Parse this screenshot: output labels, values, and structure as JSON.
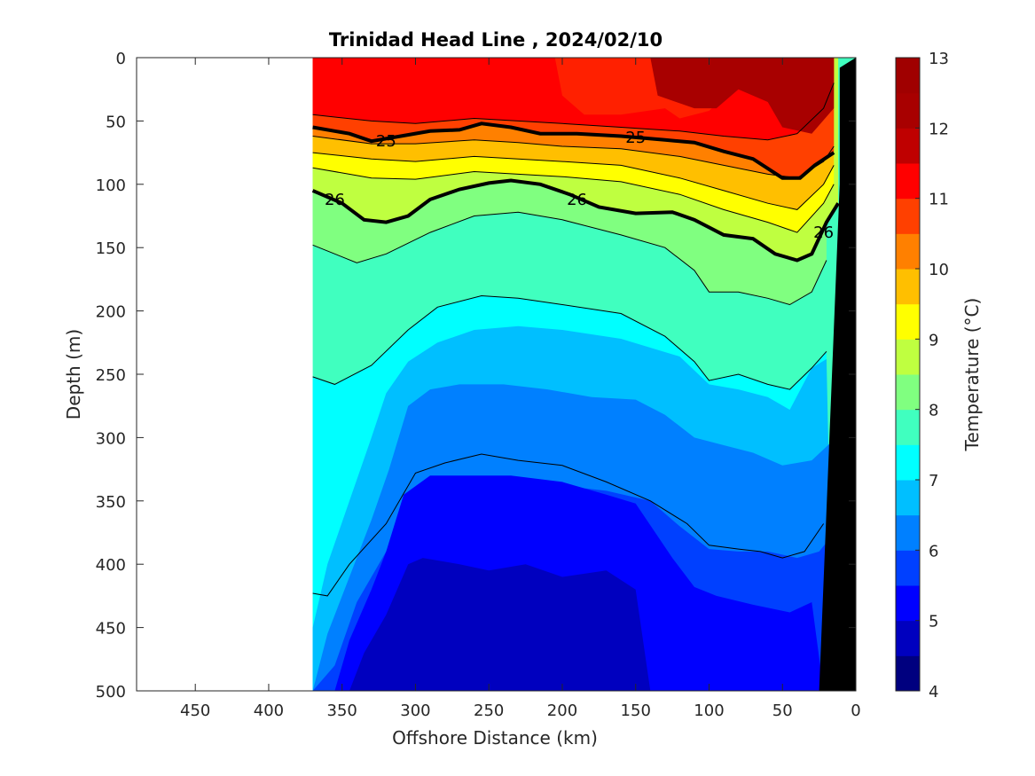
{
  "chart_data": {
    "type": "heatmap",
    "title": "Trinidad Head Line , 2024/02/10",
    "xlabel": "Offshore Distance (km)",
    "ylabel": "Depth (m)",
    "xlim": [
      490,
      0
    ],
    "ylim": [
      0,
      500
    ],
    "x_reversed": true,
    "y_reversed": true,
    "xticks": [
      450,
      400,
      350,
      300,
      250,
      200,
      150,
      100,
      50,
      0
    ],
    "yticks": [
      0,
      50,
      100,
      150,
      200,
      250,
      300,
      350,
      400,
      450,
      500
    ],
    "colorbar": {
      "label": "Temperature (°C)",
      "min": 4,
      "max": 13,
      "ticks": [
        4,
        5,
        6,
        7,
        8,
        9,
        10,
        11,
        12,
        13
      ],
      "step": 0.5,
      "colors": [
        "#00007f",
        "#0000bf",
        "#0000ff",
        "#0040ff",
        "#0080ff",
        "#00bfff",
        "#00ffff",
        "#40ffbf",
        "#80ff80",
        "#bfff40",
        "#ffff00",
        "#ffbf00",
        "#ff8000",
        "#ff4000",
        "#ff0000",
        "#bf0000",
        "#a80000",
        "#a00000"
      ]
    },
    "data_extent_km": [
      370,
      0
    ],
    "bottom_mask": {
      "color": "#000000",
      "points": [
        [
          0,
          0
        ],
        [
          0,
          500
        ],
        [
          25,
          500
        ],
        [
          11,
          100
        ],
        [
          11,
          8
        ]
      ]
    },
    "temperature_bands": [
      {
        "t": 7.5,
        "color": "#00bfff",
        "pts": [
          [
            370,
            450
          ],
          [
            360,
            400
          ],
          [
            345,
            350
          ],
          [
            330,
            300
          ],
          [
            320,
            265
          ],
          [
            305,
            240
          ],
          [
            285,
            225
          ],
          [
            260,
            215
          ],
          [
            230,
            212
          ],
          [
            200,
            215
          ],
          [
            160,
            222
          ],
          [
            120,
            236
          ],
          [
            100,
            258
          ],
          [
            80,
            262
          ],
          [
            60,
            268
          ],
          [
            45,
            278
          ],
          [
            30,
            245
          ],
          [
            20,
            238
          ],
          [
            15,
            500
          ],
          [
            370,
            500
          ]
        ]
      },
      {
        "t": 7,
        "color": "#0080ff",
        "pts": [
          [
            370,
            500
          ],
          [
            360,
            455
          ],
          [
            345,
            410
          ],
          [
            330,
            365
          ],
          [
            318,
            325
          ],
          [
            305,
            275
          ],
          [
            290,
            262
          ],
          [
            270,
            258
          ],
          [
            240,
            258
          ],
          [
            210,
            262
          ],
          [
            180,
            268
          ],
          [
            150,
            270
          ],
          [
            130,
            282
          ],
          [
            110,
            300
          ],
          [
            90,
            306
          ],
          [
            70,
            312
          ],
          [
            50,
            322
          ],
          [
            30,
            318
          ],
          [
            18,
            305
          ],
          [
            15,
            500
          ]
        ]
      },
      {
        "t": 6.5,
        "color": "#0040ff",
        "pts": [
          [
            370,
            500
          ],
          [
            355,
            480
          ],
          [
            340,
            430
          ],
          [
            320,
            390
          ],
          [
            305,
            350
          ],
          [
            290,
            335
          ],
          [
            260,
            335
          ],
          [
            230,
            332
          ],
          [
            200,
            338
          ],
          [
            170,
            342
          ],
          [
            140,
            350
          ],
          [
            120,
            370
          ],
          [
            100,
            388
          ],
          [
            80,
            390
          ],
          [
            60,
            390
          ],
          [
            40,
            395
          ],
          [
            25,
            390
          ],
          [
            18,
            380
          ],
          [
            15,
            500
          ]
        ]
      },
      {
        "t": 6,
        "color": "#0000ff",
        "pts": [
          [
            355,
            500
          ],
          [
            345,
            460
          ],
          [
            330,
            420
          ],
          [
            320,
            390
          ],
          [
            308,
            345
          ],
          [
            290,
            330
          ],
          [
            265,
            330
          ],
          [
            235,
            330
          ],
          [
            200,
            335
          ],
          [
            170,
            345
          ],
          [
            150,
            352
          ],
          [
            125,
            395
          ],
          [
            110,
            418
          ],
          [
            95,
            425
          ],
          [
            70,
            432
          ],
          [
            45,
            438
          ],
          [
            30,
            430
          ],
          [
            22,
            500
          ]
        ]
      },
      {
        "t": 5.5,
        "color": "#0000bf",
        "pts": [
          [
            345,
            500
          ],
          [
            335,
            470
          ],
          [
            320,
            440
          ],
          [
            305,
            400
          ],
          [
            295,
            395
          ],
          [
            270,
            400
          ],
          [
            250,
            405
          ],
          [
            225,
            400
          ],
          [
            200,
            410
          ],
          [
            170,
            405
          ],
          [
            150,
            420
          ],
          [
            145,
            460
          ],
          [
            140,
            500
          ]
        ]
      }
    ],
    "isotherm_lines": [
      {
        "pts": [
          [
            370,
            45
          ],
          [
            330,
            50
          ],
          [
            300,
            52
          ],
          [
            260,
            48
          ],
          [
            230,
            50
          ],
          [
            200,
            52
          ],
          [
            160,
            55
          ],
          [
            120,
            58
          ],
          [
            90,
            62
          ],
          [
            60,
            65
          ],
          [
            40,
            60
          ],
          [
            22,
            40
          ],
          [
            15,
            20
          ]
        ],
        "width": 1
      },
      {
        "pts": [
          [
            370,
            62
          ],
          [
            330,
            68
          ],
          [
            300,
            68
          ],
          [
            260,
            65
          ],
          [
            230,
            67
          ],
          [
            200,
            70
          ],
          [
            160,
            72
          ],
          [
            120,
            78
          ],
          [
            90,
            85
          ],
          [
            60,
            92
          ],
          [
            40,
            95
          ],
          [
            22,
            82
          ],
          [
            15,
            70
          ]
        ],
        "width": 1
      },
      {
        "pts": [
          [
            370,
            75
          ],
          [
            330,
            80
          ],
          [
            300,
            82
          ],
          [
            260,
            78
          ],
          [
            230,
            80
          ],
          [
            200,
            82
          ],
          [
            160,
            85
          ],
          [
            120,
            95
          ],
          [
            90,
            105
          ],
          [
            60,
            115
          ],
          [
            40,
            120
          ],
          [
            22,
            100
          ],
          [
            15,
            85
          ]
        ],
        "width": 1
      },
      {
        "pts": [
          [
            370,
            87
          ],
          [
            330,
            95
          ],
          [
            300,
            96
          ],
          [
            260,
            90
          ],
          [
            230,
            92
          ],
          [
            200,
            94
          ],
          [
            160,
            98
          ],
          [
            120,
            108
          ],
          [
            90,
            120
          ],
          [
            60,
            130
          ],
          [
            40,
            138
          ],
          [
            22,
            115
          ],
          [
            15,
            100
          ]
        ],
        "width": 1
      },
      {
        "pts": [
          [
            370,
            148
          ],
          [
            340,
            162
          ],
          [
            320,
            155
          ],
          [
            290,
            138
          ],
          [
            260,
            125
          ],
          [
            230,
            122
          ],
          [
            200,
            128
          ],
          [
            160,
            140
          ],
          [
            130,
            150
          ],
          [
            110,
            168
          ],
          [
            100,
            185
          ],
          [
            80,
            185
          ],
          [
            60,
            190
          ],
          [
            45,
            195
          ],
          [
            30,
            185
          ],
          [
            20,
            160
          ]
        ],
        "width": 1
      },
      {
        "pts": [
          [
            370,
            252
          ],
          [
            355,
            258
          ],
          [
            330,
            243
          ],
          [
            305,
            215
          ],
          [
            285,
            197
          ],
          [
            255,
            188
          ],
          [
            230,
            190
          ],
          [
            200,
            195
          ],
          [
            160,
            202
          ],
          [
            130,
            220
          ],
          [
            110,
            240
          ],
          [
            100,
            255
          ],
          [
            80,
            250
          ],
          [
            60,
            258
          ],
          [
            45,
            262
          ],
          [
            30,
            245
          ],
          [
            20,
            232
          ]
        ],
        "width": 1
      },
      {
        "pts": [
          [
            370,
            423
          ],
          [
            360,
            425
          ],
          [
            345,
            400
          ],
          [
            320,
            368
          ],
          [
            300,
            328
          ],
          [
            280,
            320
          ],
          [
            255,
            313
          ],
          [
            230,
            318
          ],
          [
            200,
            322
          ],
          [
            170,
            335
          ],
          [
            140,
            350
          ],
          [
            115,
            368
          ],
          [
            100,
            385
          ],
          [
            80,
            388
          ],
          [
            65,
            390
          ],
          [
            50,
            395
          ],
          [
            35,
            390
          ],
          [
            22,
            368
          ]
        ],
        "width": 1
      }
    ],
    "sigma_theta_contours": [
      {
        "label": "25",
        "pts": [
          [
            370,
            55
          ],
          [
            345,
            60
          ],
          [
            330,
            66
          ],
          [
            310,
            62
          ],
          [
            290,
            58
          ],
          [
            270,
            57
          ],
          [
            255,
            52
          ],
          [
            235,
            55
          ],
          [
            215,
            60
          ],
          [
            190,
            60
          ],
          [
            160,
            62
          ],
          [
            130,
            65
          ],
          [
            110,
            67
          ],
          [
            90,
            74
          ],
          [
            70,
            80
          ],
          [
            50,
            95
          ],
          [
            38,
            95
          ],
          [
            28,
            85
          ],
          [
            15,
            75
          ]
        ],
        "label_at": [
          [
            320,
            66
          ],
          [
            150,
            63
          ]
        ]
      },
      {
        "label": "26",
        "pts": [
          [
            370,
            105
          ],
          [
            350,
            115
          ],
          [
            335,
            128
          ],
          [
            320,
            130
          ],
          [
            305,
            125
          ],
          [
            290,
            112
          ],
          [
            270,
            104
          ],
          [
            250,
            99
          ],
          [
            235,
            97
          ],
          [
            215,
            100
          ],
          [
            195,
            108
          ],
          [
            175,
            118
          ],
          [
            150,
            123
          ],
          [
            125,
            122
          ],
          [
            110,
            128
          ],
          [
            90,
            140
          ],
          [
            70,
            143
          ],
          [
            55,
            155
          ],
          [
            40,
            160
          ],
          [
            30,
            155
          ],
          [
            20,
            130
          ],
          [
            12,
            115
          ]
        ],
        "label_at": [
          [
            355,
            112
          ],
          [
            190,
            112
          ],
          [
            22,
            138
          ]
        ]
      }
    ]
  }
}
